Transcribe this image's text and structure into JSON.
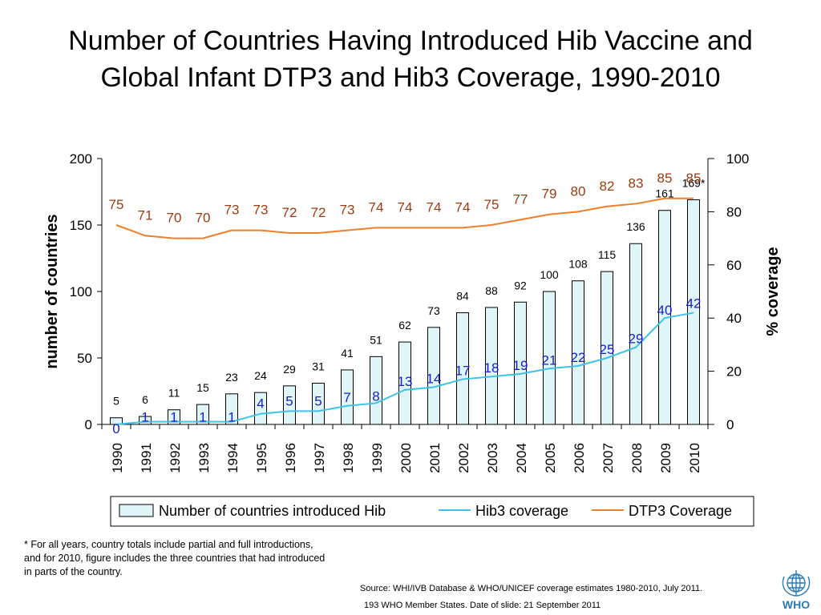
{
  "title_lines": [
    "Number of Countries Having Introduced Hib Vaccine and",
    "Global Infant DTP3 and Hib3 Coverage, 1990-2010"
  ],
  "chart_data": {
    "type": "bar",
    "categories": [
      "1990",
      "1991",
      "1992",
      "1993",
      "1994",
      "1995",
      "1996",
      "1997",
      "1998",
      "1999",
      "2000",
      "2001",
      "2002",
      "2003",
      "2004",
      "2005",
      "2006",
      "2007",
      "2008",
      "2009",
      "2010"
    ],
    "ylabel_left": "number of countries",
    "ylabel_right": "% coverage",
    "ylim_left": [
      0,
      200
    ],
    "yticks_left": [
      0,
      50,
      100,
      150,
      200
    ],
    "ylim_right": [
      0,
      100
    ],
    "yticks_right": [
      0,
      20,
      40,
      60,
      80,
      100
    ],
    "series": [
      {
        "name": "Number of countries introduced Hib",
        "type": "bar",
        "axis": "left",
        "color": "#dff5f7",
        "edge_color": "#000000",
        "values": [
          5,
          6,
          11,
          15,
          23,
          24,
          29,
          31,
          41,
          51,
          62,
          73,
          84,
          88,
          92,
          100,
          108,
          115,
          136,
          161,
          169
        ],
        "labels": [
          "5",
          "6",
          "11",
          "15",
          "23",
          "24",
          "29",
          "31",
          "41",
          "51",
          "62",
          "73",
          "84",
          "88",
          "92",
          "100",
          "108",
          "115",
          "136",
          "161",
          "169*"
        ],
        "label_color": "#000000"
      },
      {
        "name": "Hib3 coverage",
        "type": "line",
        "axis": "right",
        "color": "#3cc3e6",
        "label_color": "#1a1ad6",
        "values": [
          0,
          1,
          1,
          1,
          1,
          4,
          5,
          5,
          7,
          8,
          13,
          14,
          17,
          18,
          19,
          21,
          22,
          25,
          29,
          40,
          42
        ]
      },
      {
        "name": "DTP3 Coverage",
        "type": "line",
        "axis": "right",
        "color": "#f07f2a",
        "label_color": "#9c3a0e",
        "values": [
          75,
          71,
          70,
          70,
          73,
          73,
          72,
          72,
          73,
          74,
          74,
          74,
          74,
          75,
          77,
          79,
          80,
          82,
          83,
          85,
          85
        ]
      }
    ],
    "legend_position": "bottom"
  },
  "footnote_lines": [
    "* For all years, country totals include partial and full introductions,",
    "and for 2010, figure includes the three countries that had introduced",
    "in parts of the country."
  ],
  "source_text": "Source: WHI/IVB Database & WHO/UNICEF coverage estimates 1980-2010, July 2011.",
  "member_text": "193 WHO Member States. Date of slide:  21 September 2011",
  "logo_text": "WHO",
  "logo_icon": "who-emblem-icon"
}
